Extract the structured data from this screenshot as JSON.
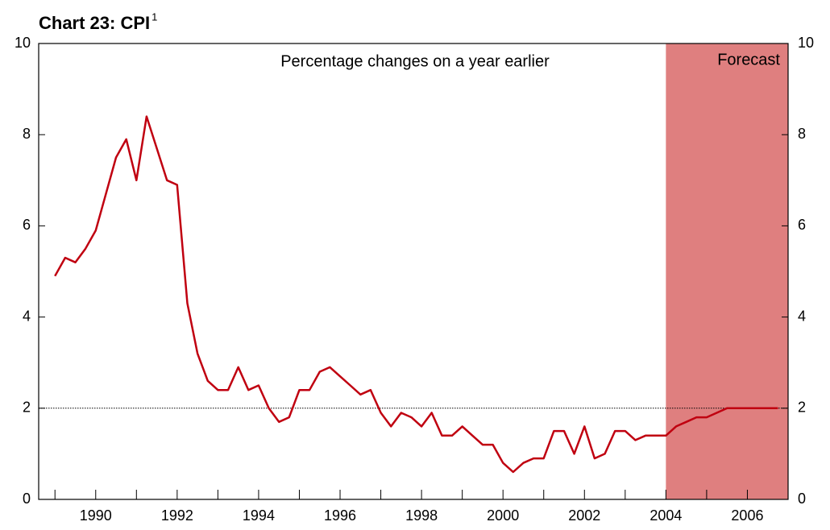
{
  "chart_data": {
    "type": "line",
    "title": "Chart 23: CPI",
    "title_note": "1",
    "subtitle": "Percentage changes on a year earlier",
    "x": [
      1989,
      1989.25,
      1989.5,
      1989.75,
      1990,
      1990.25,
      1990.5,
      1990.75,
      1991,
      1991.25,
      1991.5,
      1991.75,
      1992,
      1992.25,
      1992.5,
      1992.75,
      1993,
      1993.25,
      1993.5,
      1993.75,
      1994,
      1994.25,
      1994.5,
      1994.75,
      1995,
      1995.25,
      1995.5,
      1995.75,
      1996,
      1996.25,
      1996.5,
      1996.75,
      1997,
      1997.25,
      1997.5,
      1997.75,
      1998,
      1998.25,
      1998.5,
      1998.75,
      1999,
      1999.25,
      1999.5,
      1999.75,
      2000,
      2000.25,
      2000.5,
      2000.75,
      2001,
      2001.25,
      2001.5,
      2001.75,
      2002,
      2002.25,
      2002.5,
      2002.75,
      2003,
      2003.25,
      2003.5,
      2003.75,
      2004,
      2004.25,
      2004.5,
      2004.75,
      2005,
      2005.25,
      2005.5,
      2005.75,
      2006,
      2006.25,
      2006.5,
      2006.75
    ],
    "series": [
      {
        "name": "CPI",
        "color": "#c00010",
        "values": [
          4.9,
          5.3,
          5.2,
          5.5,
          5.9,
          6.7,
          7.5,
          7.9,
          7.0,
          8.4,
          7.7,
          7.0,
          6.9,
          4.3,
          3.2,
          2.6,
          2.4,
          2.4,
          2.9,
          2.4,
          2.5,
          2.0,
          1.7,
          1.8,
          2.4,
          2.4,
          2.8,
          2.9,
          2.7,
          2.5,
          2.3,
          2.4,
          1.9,
          1.6,
          1.9,
          1.8,
          1.6,
          1.9,
          1.4,
          1.4,
          1.6,
          1.4,
          1.2,
          1.2,
          0.8,
          0.6,
          0.8,
          0.9,
          0.9,
          1.5,
          1.5,
          1.0,
          1.6,
          0.9,
          1.0,
          1.5,
          1.5,
          1.3,
          1.4,
          1.4,
          1.4,
          1.6,
          1.7,
          1.8,
          1.8,
          1.9,
          2.0,
          2.0,
          2.0,
          2.0,
          2.0,
          2.0
        ]
      }
    ],
    "xlim": [
      1988.6,
      2007
    ],
    "xticks": [
      1990,
      1992,
      1994,
      1996,
      1998,
      2000,
      2002,
      2004,
      2006
    ],
    "xminorticks": [
      1989,
      1991,
      1993,
      1995,
      1997,
      1999,
      2001,
      2003,
      2005
    ],
    "ylim": [
      0,
      10
    ],
    "yticks": [
      0,
      2,
      4,
      6,
      8,
      10
    ],
    "y2lim": [
      0,
      10
    ],
    "y2ticks": [
      0,
      2,
      4,
      6,
      8,
      10
    ],
    "reference_line": 2,
    "shaded_region": {
      "x": [
        2004,
        2007
      ],
      "label": "Forecast",
      "color": "#df7f7f"
    }
  }
}
